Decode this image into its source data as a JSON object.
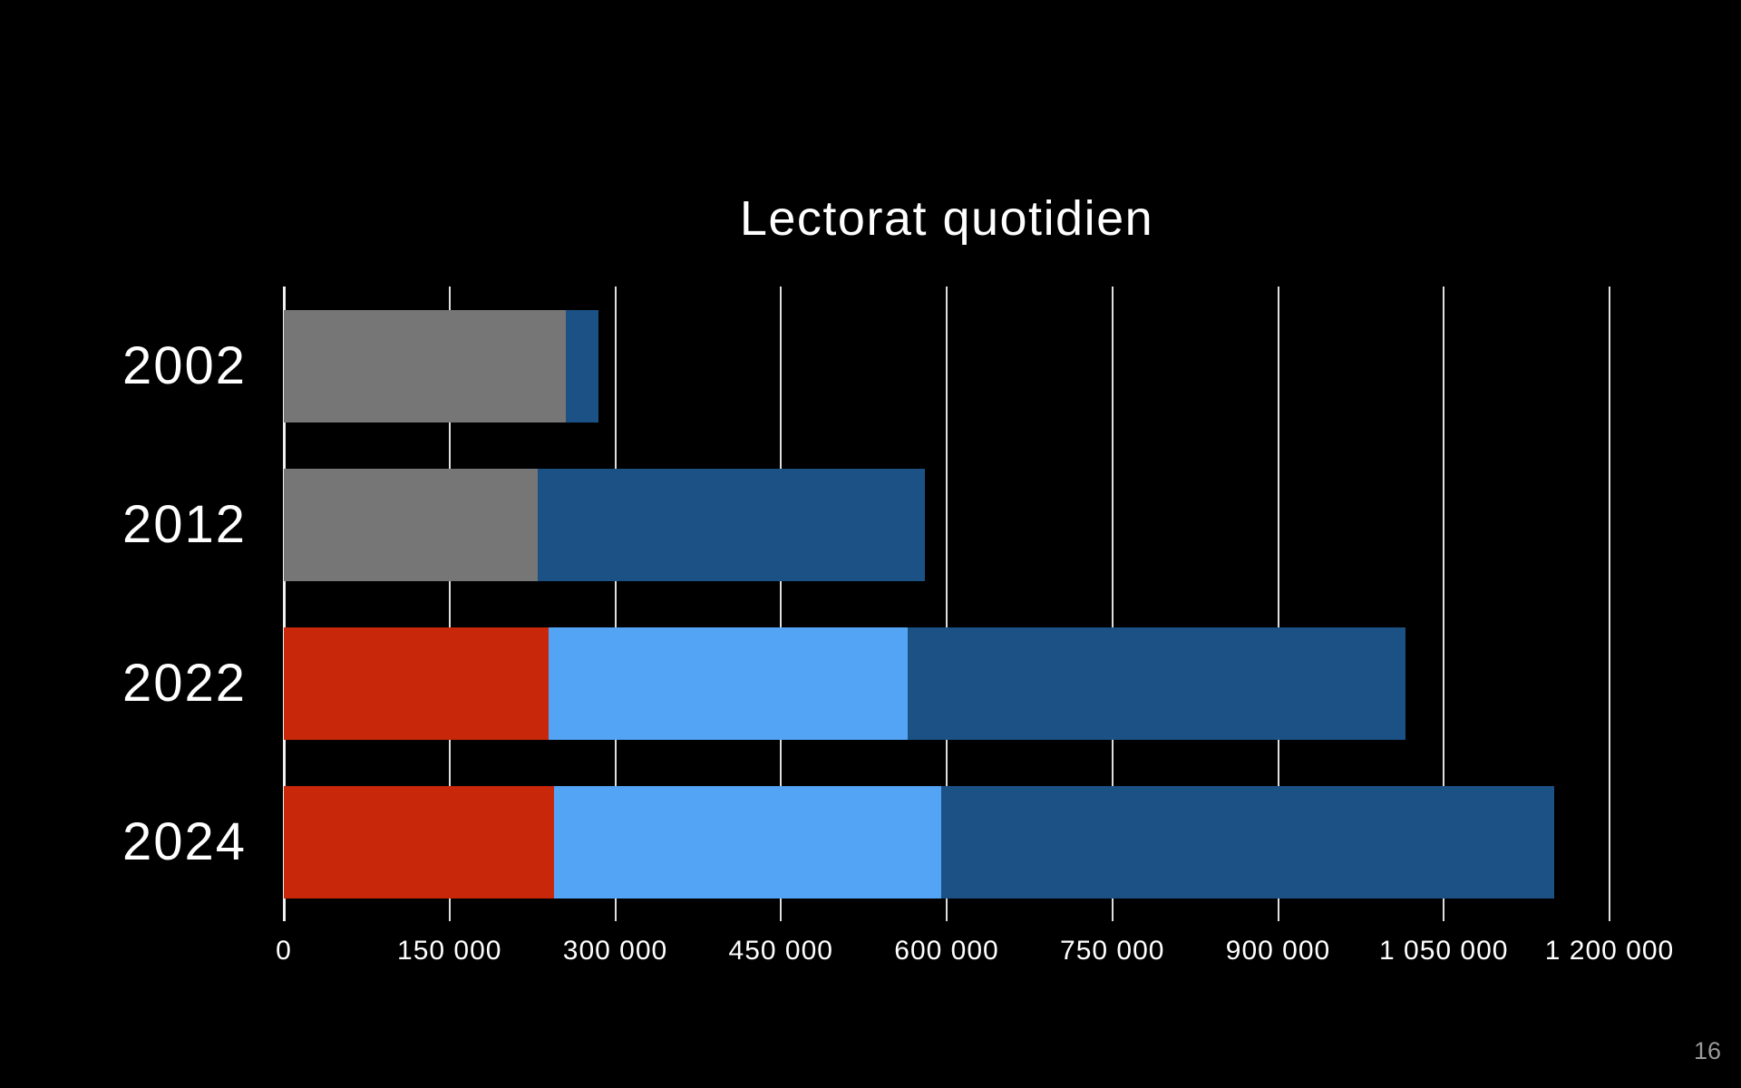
{
  "slide": {
    "background": "#000000",
    "page_number": "16"
  },
  "chart_data": {
    "type": "bar",
    "orientation": "horizontal",
    "stacked": true,
    "title": "Lectorat quotidien",
    "title_color": "#ffffff",
    "categories": [
      "2002",
      "2012",
      "2022",
      "2024"
    ],
    "bars": [
      {
        "category": "2002",
        "segments": [
          {
            "value": 255000,
            "color": "#767676"
          },
          {
            "value": 30000,
            "color": "#1B5185"
          }
        ]
      },
      {
        "category": "2012",
        "segments": [
          {
            "value": 230000,
            "color": "#767676"
          },
          {
            "value": 350000,
            "color": "#1B5185"
          }
        ]
      },
      {
        "category": "2022",
        "segments": [
          {
            "value": 240000,
            "color": "#C9270A"
          },
          {
            "value": 325000,
            "color": "#54A4F5"
          },
          {
            "value": 450000,
            "color": "#1B5185"
          }
        ]
      },
      {
        "category": "2024",
        "segments": [
          {
            "value": 245000,
            "color": "#C9270A"
          },
          {
            "value": 350000,
            "color": "#54A4F5"
          },
          {
            "value": 555000,
            "color": "#1B5185"
          }
        ]
      }
    ],
    "x_axis": {
      "min": 0,
      "max": 1200000,
      "tick_step": 150000,
      "tick_labels": [
        "0",
        "150 000",
        "300 000",
        "450 000",
        "600 000",
        "750 000",
        "900 000",
        "1 050 000",
        "1 200 000"
      ],
      "label_color": "#ffffff"
    },
    "grid": {
      "show": true,
      "color": "#DEDEDE",
      "axis_line_color": "#F0F0F0"
    },
    "legend": {
      "show": false
    }
  }
}
